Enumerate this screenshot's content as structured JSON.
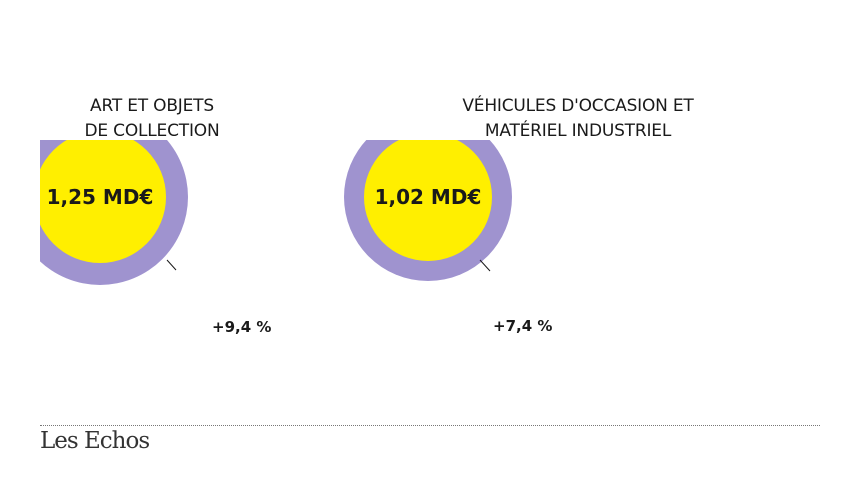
{
  "chart_data": [
    {
      "type": "pie",
      "title": [
        "ART ET OBJETS",
        "DE COLLECTION"
      ],
      "value_label": "1,25 MD€",
      "value": 1.25,
      "unit": "MD€",
      "growth_label": "+9,4 %",
      "growth_pct": 9.4
    },
    {
      "type": "pie",
      "title": [
        "VÉHICULES D'OCCASION ET",
        "MATÉRIEL INDUSTRIEL"
      ],
      "value_label": "1,02 MD€",
      "value": 1.02,
      "unit": "MD€",
      "growth_label": "+7,4 %",
      "growth_pct": 7.4
    }
  ],
  "colors": {
    "ring": "#9f93cf",
    "core": "#ffef00",
    "text": "#1a1a1a"
  },
  "logo": {
    "text": "Les Echos"
  }
}
